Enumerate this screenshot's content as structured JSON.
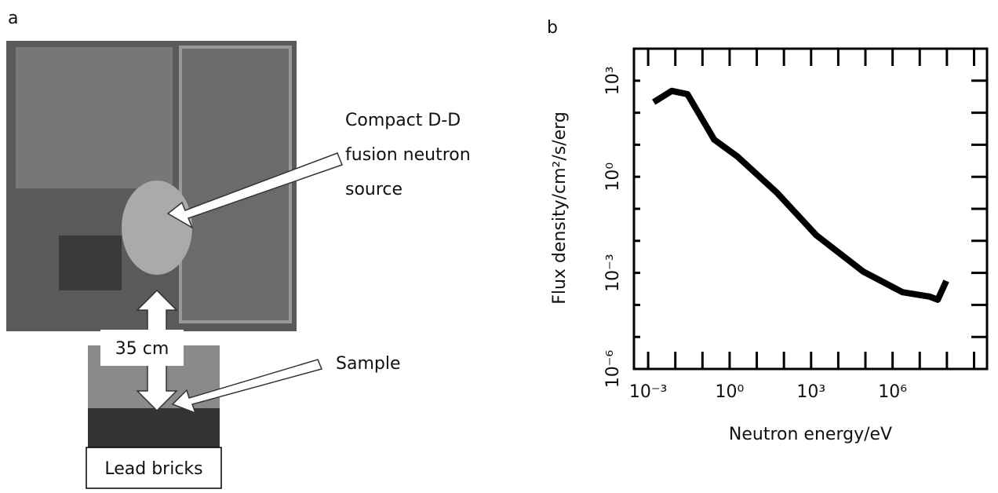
{
  "panel_a": {
    "label": "a",
    "source_annotation": [
      "Compact D-D",
      "fusion neutron",
      "source"
    ],
    "sample_annotation": "Sample",
    "distance_label": "35 cm",
    "bricks_label": "Lead bricks"
  },
  "chart_data": {
    "type": "line",
    "panel_label": "b",
    "x_label": "Neutron energy/eV",
    "y_label": "Flux density/cm²/s/erg",
    "x": [
      0.0016,
      0.0074,
      0.028,
      0.27,
      2.0,
      55,
      1550,
      83000,
      2300000,
      24000000,
      46000000,
      95000000
    ],
    "values": [
      214,
      480,
      380,
      14.5,
      4.2,
      0.32,
      0.015,
      0.0011,
      0.00025,
      0.00018,
      0.000145,
      0.00056
    ],
    "color": "#000000",
    "log_x": true,
    "log_y": true,
    "xlim": [
      0.0003,
      3000000000
    ],
    "ylim": [
      1e-06,
      10000
    ],
    "xticks": [
      {
        "value": 0.001,
        "label": "10⁻³"
      },
      {
        "value": 1,
        "label": "10⁰"
      },
      {
        "value": 1000,
        "label": "10³"
      },
      {
        "value": 1000000,
        "label": "10⁶"
      }
    ],
    "yticks": [
      {
        "value": 1e-06,
        "label": "10⁻⁶"
      },
      {
        "value": 0.001,
        "label": "10⁻³"
      },
      {
        "value": 1,
        "label": "10⁰"
      },
      {
        "value": 1000,
        "label": "10³"
      }
    ],
    "xminor_ticks": [
      0.01,
      0.1,
      10,
      100,
      10000,
      100000,
      10000000,
      100000000,
      1000000000
    ],
    "yminor_ticks": [
      1e-05,
      0.0001,
      0.01,
      0.1,
      10,
      100
    ]
  }
}
